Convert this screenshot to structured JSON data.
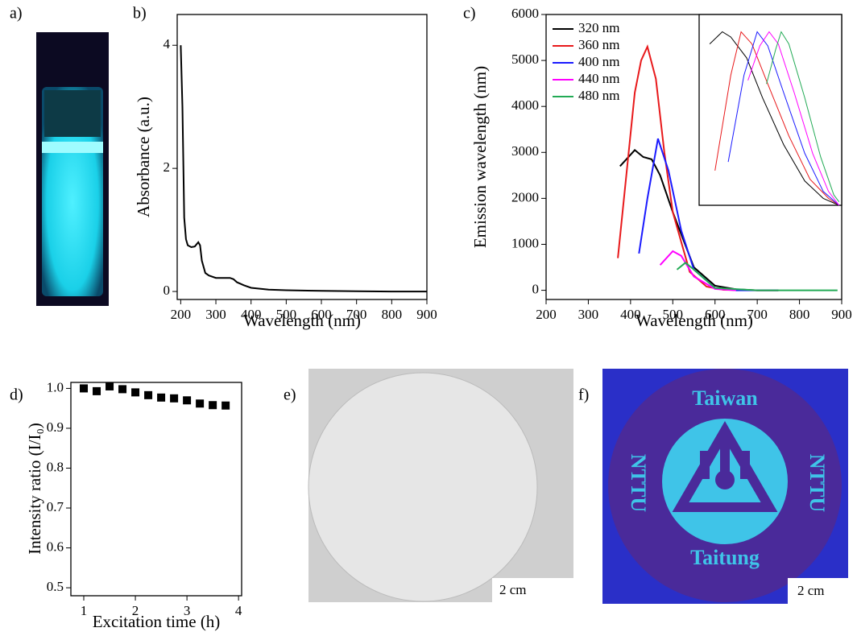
{
  "chart_data": [
    {
      "type": "line",
      "panel_label": "b)",
      "x_label": "Wavelength (nm)",
      "y_label": "Absorbance (a.u.)",
      "color": "#000000",
      "x": [
        200,
        205,
        210,
        215,
        220,
        230,
        240,
        250,
        255,
        260,
        270,
        280,
        300,
        320,
        340,
        350,
        360,
        380,
        400,
        450,
        500,
        600,
        700,
        800,
        900
      ],
      "values": [
        4.0,
        3.0,
        1.2,
        0.85,
        0.75,
        0.72,
        0.73,
        0.8,
        0.75,
        0.5,
        0.3,
        0.26,
        0.22,
        0.22,
        0.22,
        0.2,
        0.15,
        0.1,
        0.06,
        0.03,
        0.02,
        0.01,
        0.005,
        0,
        0
      ],
      "xlim": [
        190,
        900
      ],
      "ylim": [
        -0.13,
        4.5
      ],
      "xticks": [
        200,
        300,
        400,
        500,
        600,
        700,
        800,
        900
      ],
      "yticks": [
        0,
        2,
        4
      ]
    },
    {
      "type": "line",
      "panel_label": "c)",
      "x_label": "Wavelength (nm)",
      "y_label": "Emission wavelength (nm)",
      "legend": "upper left",
      "series": [
        {
          "name": "320 nm",
          "color": "#000000",
          "x": [
            375,
            390,
            410,
            430,
            450,
            470,
            500,
            550,
            600,
            650,
            700,
            750
          ],
          "values": [
            2700,
            2850,
            3050,
            2900,
            2850,
            2500,
            1700,
            500,
            100,
            20,
            0,
            0
          ]
        },
        {
          "name": "360 nm",
          "color": "#e8191b",
          "x": [
            370,
            390,
            410,
            425,
            440,
            460,
            480,
            500,
            540,
            580,
            620,
            700,
            750
          ],
          "values": [
            700,
            2500,
            4300,
            5000,
            5300,
            4600,
            3000,
            1700,
            400,
            80,
            10,
            0,
            0
          ]
        },
        {
          "name": "400 nm",
          "color": "#1a1aff",
          "x": [
            420,
            440,
            465,
            490,
            520,
            550,
            600,
            650,
            750
          ],
          "values": [
            800,
            2000,
            3300,
            2600,
            1300,
            450,
            50,
            0,
            0
          ]
        },
        {
          "name": "440 nm",
          "color": "#ff00ff",
          "x": [
            470,
            500,
            520,
            550,
            600,
            650
          ],
          "values": [
            550,
            850,
            750,
            300,
            30,
            0
          ]
        },
        {
          "name": "480 nm",
          "color": "#22aa55",
          "x": [
            510,
            530,
            550,
            600,
            700,
            890
          ],
          "values": [
            450,
            600,
            450,
            50,
            0,
            0
          ]
        }
      ],
      "xlim": [
        200,
        900
      ],
      "ylim": [
        -200,
        6000
      ],
      "xticks": [
        200,
        300,
        400,
        500,
        600,
        700,
        800,
        900
      ],
      "yticks": [
        0,
        1000,
        2000,
        3000,
        4000,
        5000,
        6000
      ]
    },
    {
      "type": "line",
      "series": [
        {
          "color": "#000000",
          "x": [
            400,
            448,
            480,
            540,
            600,
            680,
            760,
            830,
            890
          ],
          "values": [
            0.93,
            1,
            0.97,
            0.85,
            0.62,
            0.35,
            0.14,
            0.04,
            0
          ]
        },
        {
          "color": "#e8191b",
          "x": [
            420,
            480,
            519,
            560,
            620,
            700,
            780,
            850,
            890
          ],
          "values": [
            0.2,
            0.75,
            1,
            0.93,
            0.7,
            0.4,
            0.15,
            0.04,
            0
          ]
        },
        {
          "color": "#1a1aff",
          "x": [
            470,
            530,
            580,
            620,
            680,
            760,
            830,
            890
          ],
          "values": [
            0.25,
            0.75,
            1,
            0.92,
            0.65,
            0.3,
            0.08,
            0
          ]
        },
        {
          "color": "#ff00ff",
          "x": [
            545,
            590,
            625,
            660,
            720,
            790,
            850,
            890
          ],
          "values": [
            0.72,
            0.92,
            1,
            0.93,
            0.65,
            0.3,
            0.08,
            0
          ]
        },
        {
          "color": "#22aa55",
          "x": [
            615,
            650,
            671,
            700,
            760,
            820,
            870,
            890
          ],
          "values": [
            0.7,
            0.9,
            1,
            0.93,
            0.62,
            0.28,
            0.06,
            0.02
          ]
        }
      ],
      "xlim": [
        360,
        900
      ],
      "ylim": [
        0,
        1.1
      ]
    },
    {
      "type": "scatter",
      "panel_label": "d)",
      "x_label": "Excitation time (h)",
      "y_label": "Intensity ratio (I/I₀)",
      "color": "#000000",
      "x": [
        1,
        1.25,
        1.5,
        1.75,
        2,
        2.25,
        2.5,
        2.75,
        3,
        3.25,
        3.5,
        3.75
      ],
      "values": [
        1.0,
        0.993,
        1.005,
        0.998,
        0.99,
        0.983,
        0.977,
        0.975,
        0.97,
        0.962,
        0.958,
        0.957
      ],
      "xlim": [
        0.75,
        4.06
      ],
      "ylim": [
        0.48,
        1.015
      ],
      "xticks": [
        1,
        2,
        3,
        4
      ],
      "yticks": [
        0.5,
        0.6,
        0.7,
        0.8,
        0.9,
        {
          "value": 1,
          "label": "1.0"
        }
      ]
    }
  ],
  "photos": [
    {
      "panel_label": "a)"
    },
    {
      "panel_label": "e)",
      "scale_bar": "2 cm"
    },
    {
      "panel_label": "f)",
      "scale_bar": "2 cm",
      "texts": [
        "Taiwan",
        "NTTU",
        "NTTU",
        "Taitung"
      ]
    }
  ]
}
